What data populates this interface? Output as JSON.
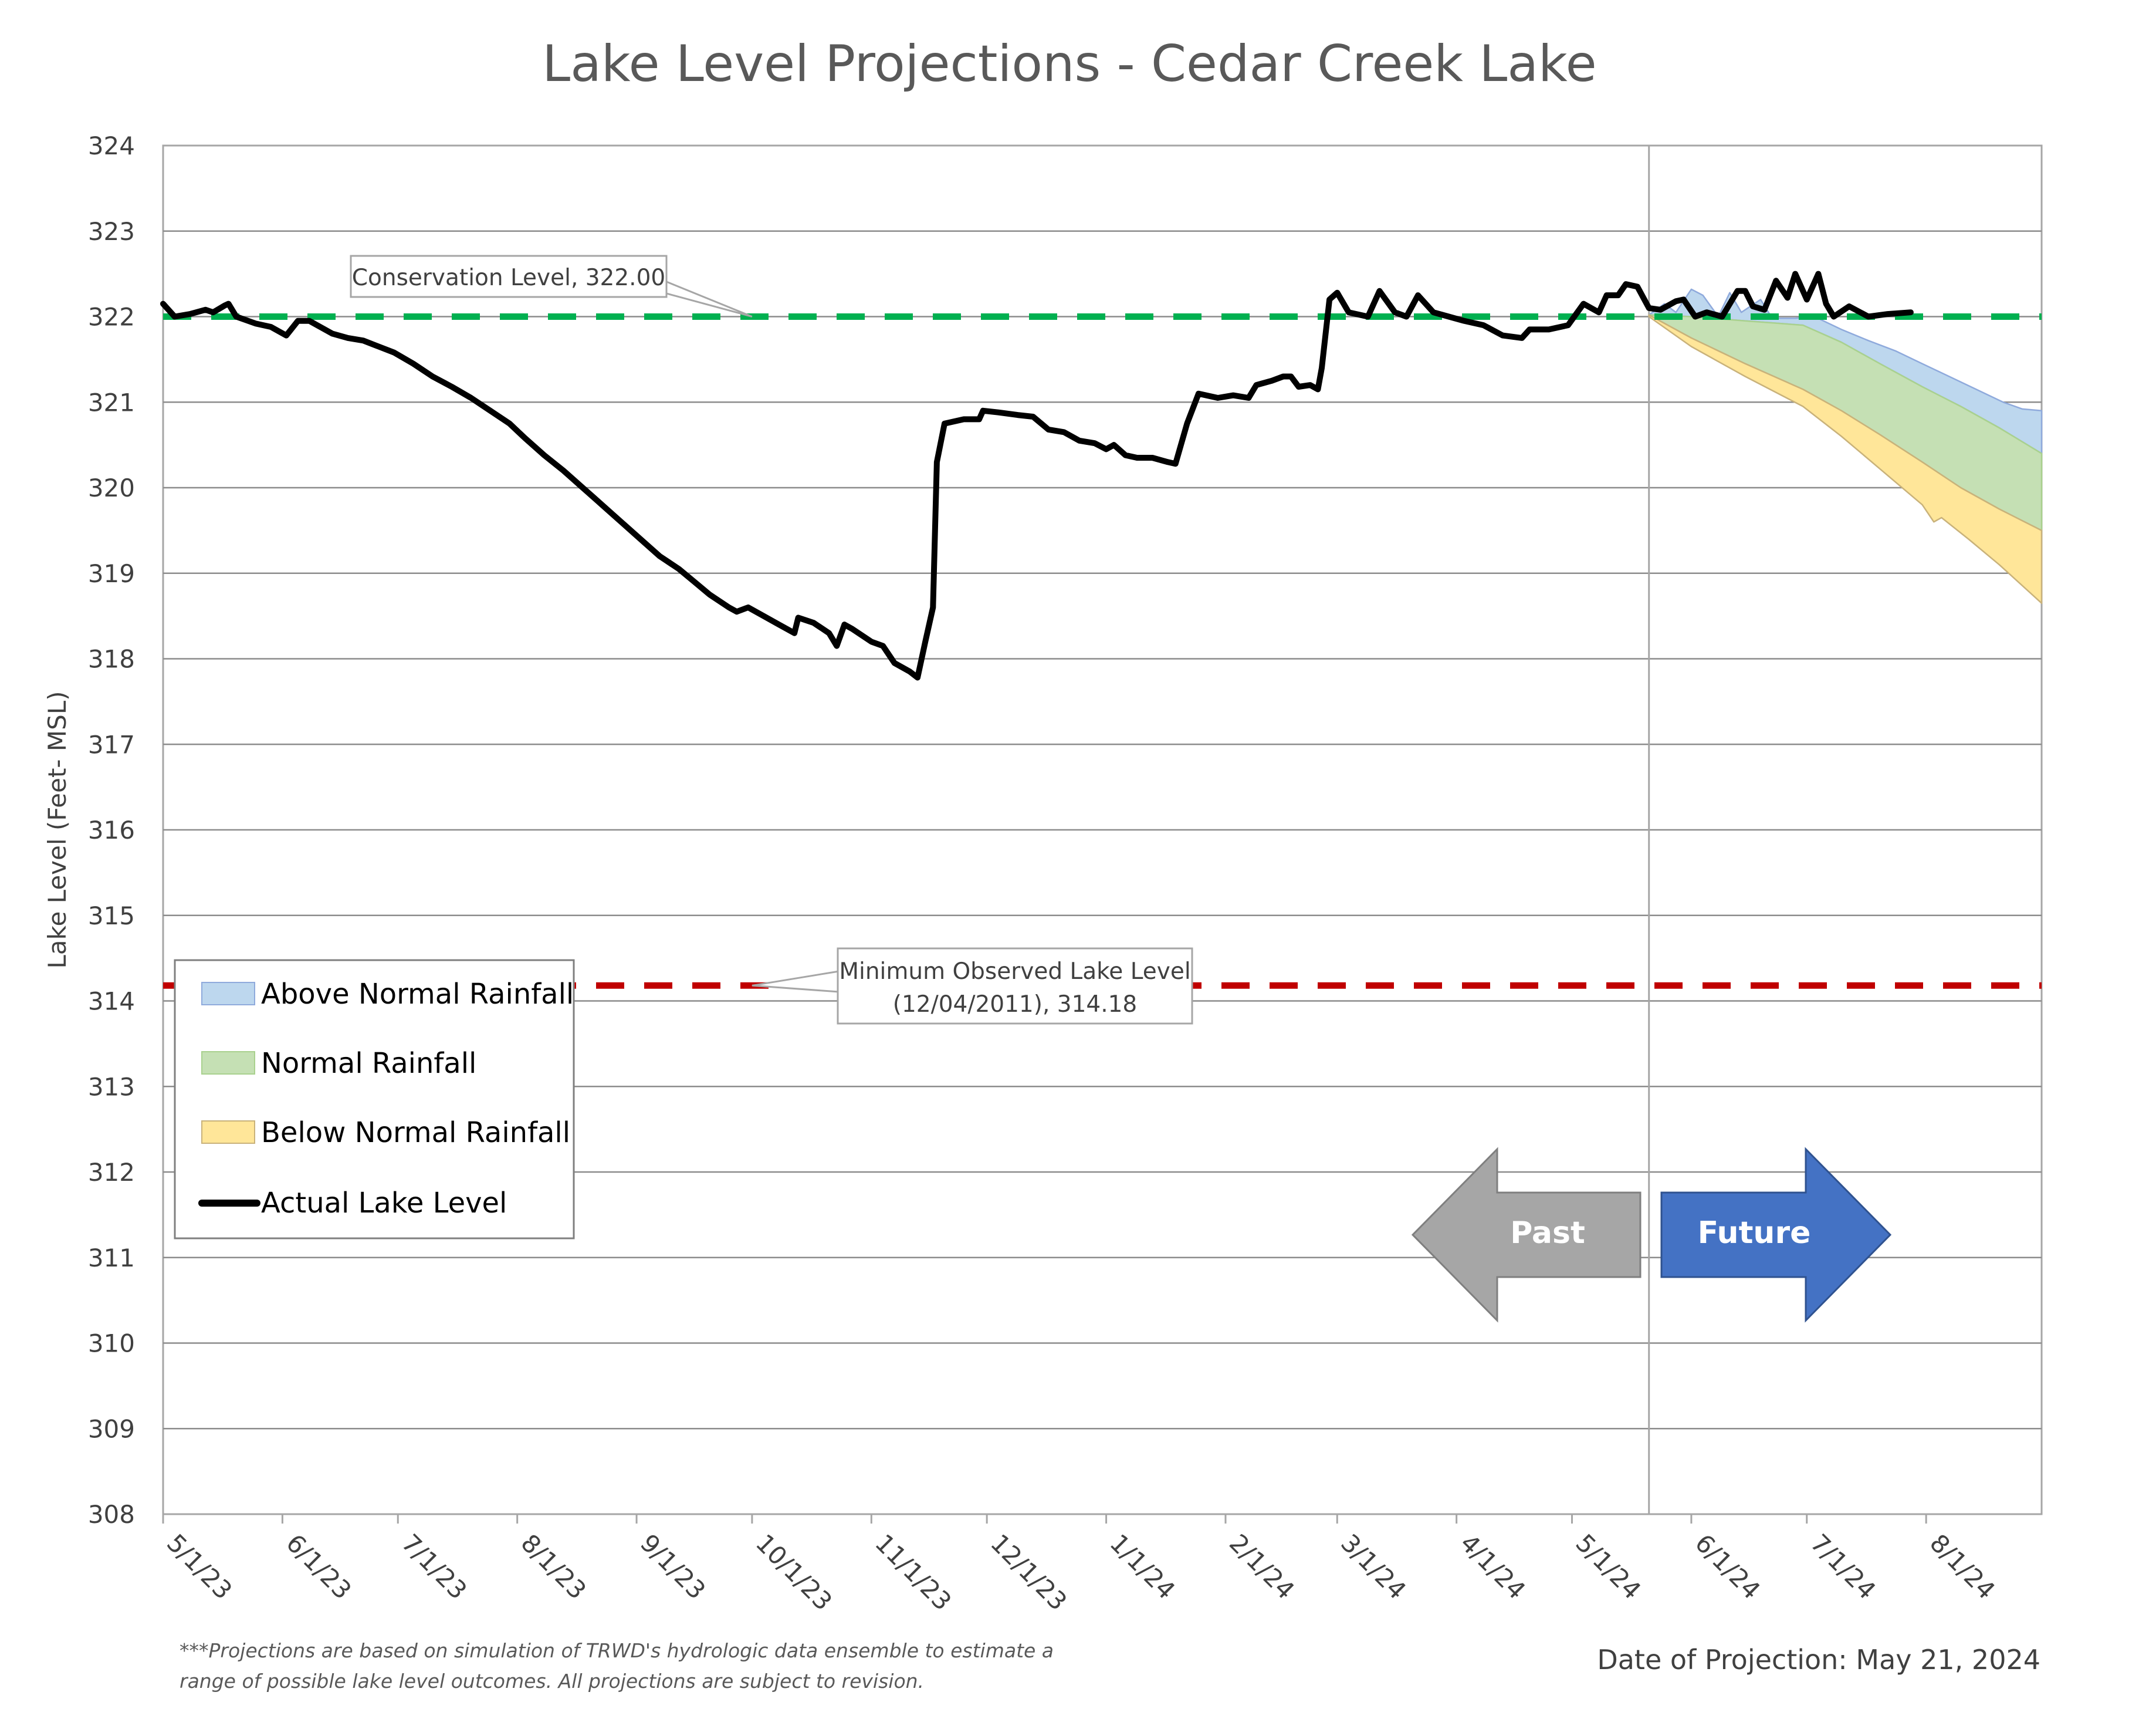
{
  "chart_data": {
    "type": "line",
    "title": "Lake Level Projections - Cedar Creek Lake",
    "ylabel": "Lake Level (Feet- MSL)",
    "xlabel": "",
    "ylim": [
      308,
      324
    ],
    "yticks": [
      "308",
      "309",
      "310",
      "311",
      "312",
      "313",
      "314",
      "315",
      "316",
      "317",
      "318",
      "319",
      "320",
      "321",
      "322",
      "323",
      "324"
    ],
    "x_range": [
      "2023-05-01",
      "2024-08-31"
    ],
    "xticks": [
      {
        "label": "5/1/23",
        "date": "2023-05-01"
      },
      {
        "label": "6/1/23",
        "date": "2023-06-01"
      },
      {
        "label": "7/1/23",
        "date": "2023-07-01"
      },
      {
        "label": "8/1/23",
        "date": "2023-08-01"
      },
      {
        "label": "9/1/23",
        "date": "2023-09-01"
      },
      {
        "label": "10/1/23",
        "date": "2023-10-01"
      },
      {
        "label": "11/1/23",
        "date": "2023-11-01"
      },
      {
        "label": "12/1/23",
        "date": "2023-12-01"
      },
      {
        "label": "1/1/24",
        "date": "2024-01-01"
      },
      {
        "label": "2/1/24",
        "date": "2024-02-01"
      },
      {
        "label": "3/1/24",
        "date": "2024-03-01"
      },
      {
        "label": "4/1/24",
        "date": "2024-04-01"
      },
      {
        "label": "5/1/24",
        "date": "2024-05-01"
      },
      {
        "label": "6/1/24",
        "date": "2024-06-01"
      },
      {
        "label": "7/1/24",
        "date": "2024-07-01"
      },
      {
        "label": "8/1/24",
        "date": "2024-08-01"
      }
    ],
    "grid": "horizontal",
    "legend_position": "bottom-left",
    "projection_date": "2024-05-21",
    "reference_lines": [
      {
        "name": "conservation",
        "value": 322.0,
        "color": "#00b050",
        "label": "Conservation Level, 322.00",
        "label_anchor_date": "2023-10-01"
      },
      {
        "name": "minimum",
        "value": 314.18,
        "color": "#c00000",
        "label_lines": [
          "Minimum Observed Lake Level",
          "(12/04/2011), 314.18"
        ],
        "label_anchor_date": "2023-10-01"
      }
    ],
    "series": [
      {
        "name": "Actual Lake Level",
        "type": "line",
        "color": "#000000",
        "points": [
          [
            "2023-05-01",
            322.15
          ],
          [
            "2023-05-04",
            322.0
          ],
          [
            "2023-05-08",
            322.03
          ],
          [
            "2023-05-12",
            322.08
          ],
          [
            "2023-05-14",
            322.05
          ],
          [
            "2023-05-17",
            322.13
          ],
          [
            "2023-05-18",
            322.15
          ],
          [
            "2023-05-20",
            322.0
          ],
          [
            "2023-05-25",
            321.92
          ],
          [
            "2023-05-29",
            321.88
          ],
          [
            "2023-06-02",
            321.78
          ],
          [
            "2023-06-05",
            321.95
          ],
          [
            "2023-06-08",
            321.95
          ],
          [
            "2023-06-14",
            321.8
          ],
          [
            "2023-06-18",
            321.75
          ],
          [
            "2023-06-22",
            321.72
          ],
          [
            "2023-06-26",
            321.65
          ],
          [
            "2023-06-30",
            321.58
          ],
          [
            "2023-07-05",
            321.45
          ],
          [
            "2023-07-10",
            321.3
          ],
          [
            "2023-07-15",
            321.18
          ],
          [
            "2023-07-20",
            321.05
          ],
          [
            "2023-07-25",
            320.9
          ],
          [
            "2023-07-30",
            320.75
          ],
          [
            "2023-08-03",
            320.58
          ],
          [
            "2023-08-08",
            320.38
          ],
          [
            "2023-08-13",
            320.2
          ],
          [
            "2023-08-18",
            320.0
          ],
          [
            "2023-08-23",
            319.8
          ],
          [
            "2023-08-28",
            319.6
          ],
          [
            "2023-09-02",
            319.4
          ],
          [
            "2023-09-07",
            319.2
          ],
          [
            "2023-09-12",
            319.05
          ],
          [
            "2023-09-16",
            318.9
          ],
          [
            "2023-09-20",
            318.75
          ],
          [
            "2023-09-25",
            318.6
          ],
          [
            "2023-09-27",
            318.55
          ],
          [
            "2023-09-30",
            318.6
          ],
          [
            "2023-10-04",
            318.5
          ],
          [
            "2023-10-08",
            318.4
          ],
          [
            "2023-10-12",
            318.3
          ],
          [
            "2023-10-13",
            318.48
          ],
          [
            "2023-10-17",
            318.42
          ],
          [
            "2023-10-21",
            318.3
          ],
          [
            "2023-10-23",
            318.15
          ],
          [
            "2023-10-25",
            318.4
          ],
          [
            "2023-10-27",
            318.35
          ],
          [
            "2023-11-01",
            318.2
          ],
          [
            "2023-11-04",
            318.15
          ],
          [
            "2023-11-07",
            317.95
          ],
          [
            "2023-11-11",
            317.85
          ],
          [
            "2023-11-13",
            317.78
          ],
          [
            "2023-11-15",
            318.2
          ],
          [
            "2023-11-17",
            318.6
          ],
          [
            "2023-11-18",
            320.3
          ],
          [
            "2023-11-20",
            320.75
          ],
          [
            "2023-11-25",
            320.8
          ],
          [
            "2023-11-29",
            320.8
          ],
          [
            "2023-11-30",
            320.9
          ],
          [
            "2023-12-04",
            320.88
          ],
          [
            "2023-12-09",
            320.85
          ],
          [
            "2023-12-13",
            320.83
          ],
          [
            "2023-12-17",
            320.68
          ],
          [
            "2023-12-21",
            320.65
          ],
          [
            "2023-12-25",
            320.55
          ],
          [
            "2023-12-29",
            320.52
          ],
          [
            "2024-01-01",
            320.45
          ],
          [
            "2024-01-03",
            320.5
          ],
          [
            "2024-01-06",
            320.38
          ],
          [
            "2024-01-09",
            320.35
          ],
          [
            "2024-01-13",
            320.35
          ],
          [
            "2024-01-17",
            320.3
          ],
          [
            "2024-01-19",
            320.28
          ],
          [
            "2024-01-22",
            320.75
          ],
          [
            "2024-01-25",
            321.1
          ],
          [
            "2024-01-30",
            321.05
          ],
          [
            "2024-02-03",
            321.08
          ],
          [
            "2024-02-07",
            321.05
          ],
          [
            "2024-02-09",
            321.2
          ],
          [
            "2024-02-13",
            321.25
          ],
          [
            "2024-02-16",
            321.3
          ],
          [
            "2024-02-18",
            321.3
          ],
          [
            "2024-02-20",
            321.18
          ],
          [
            "2024-02-23",
            321.2
          ],
          [
            "2024-02-25",
            321.15
          ],
          [
            "2024-02-26",
            321.4
          ],
          [
            "2024-02-28",
            322.2
          ],
          [
            "2024-03-01",
            322.28
          ],
          [
            "2024-03-04",
            322.05
          ],
          [
            "2024-03-09",
            322.0
          ],
          [
            "2024-03-12",
            322.3
          ],
          [
            "2024-03-16",
            322.05
          ],
          [
            "2024-03-19",
            322.0
          ],
          [
            "2024-03-22",
            322.25
          ],
          [
            "2024-03-26",
            322.05
          ],
          [
            "2024-03-30",
            322.0
          ],
          [
            "2024-04-03",
            321.95
          ],
          [
            "2024-04-08",
            321.9
          ],
          [
            "2024-04-13",
            321.78
          ],
          [
            "2024-04-18",
            321.75
          ],
          [
            "2024-04-20",
            321.85
          ],
          [
            "2024-04-25",
            321.85
          ],
          [
            "2024-04-30",
            321.9
          ],
          [
            "2024-05-04",
            322.15
          ],
          [
            "2024-05-08",
            322.05
          ],
          [
            "2024-05-10",
            322.25
          ],
          [
            "2024-05-13",
            322.25
          ],
          [
            "2024-05-15",
            322.38
          ],
          [
            "2024-05-18",
            322.35
          ],
          [
            "2024-05-21",
            322.1
          ],
          [
            "2024-05-24",
            322.08
          ],
          [
            "2024-05-28",
            322.18
          ],
          [
            "2024-05-30",
            322.2
          ],
          [
            "2024-06-02",
            322.0
          ],
          [
            "2024-06-05",
            322.05
          ],
          [
            "2024-06-09",
            322.0
          ],
          [
            "2024-06-13",
            322.3
          ],
          [
            "2024-06-15",
            322.3
          ],
          [
            "2024-06-17",
            322.12
          ],
          [
            "2024-06-20",
            322.08
          ],
          [
            "2024-06-23",
            322.42
          ],
          [
            "2024-06-26",
            322.22
          ],
          [
            "2024-06-28",
            322.5
          ],
          [
            "2024-07-01",
            322.2
          ],
          [
            "2024-07-04",
            322.5
          ],
          [
            "2024-07-06",
            322.15
          ],
          [
            "2024-07-08",
            322.0
          ],
          [
            "2024-07-12",
            322.12
          ],
          [
            "2024-07-17",
            322.0
          ],
          [
            "2024-07-22",
            322.03
          ],
          [
            "2024-07-28",
            322.05
          ]
        ]
      },
      {
        "name": "Above Normal Rainfall",
        "type": "band",
        "color": "#bdd7ee",
        "stroke": "#8faadc",
        "upper": [
          [
            "2024-05-21",
            322.02
          ],
          [
            "2024-05-25",
            322.15
          ],
          [
            "2024-05-28",
            322.05
          ],
          [
            "2024-06-01",
            322.32
          ],
          [
            "2024-06-04",
            322.25
          ],
          [
            "2024-06-08",
            322.0
          ],
          [
            "2024-06-11",
            322.28
          ],
          [
            "2024-06-14",
            322.05
          ],
          [
            "2024-06-19",
            322.2
          ],
          [
            "2024-06-22",
            321.98
          ],
          [
            "2024-06-28",
            321.98
          ],
          [
            "2024-07-03",
            322.0
          ],
          [
            "2024-07-10",
            321.85
          ],
          [
            "2024-07-17",
            321.72
          ],
          [
            "2024-07-24",
            321.6
          ],
          [
            "2024-07-31",
            321.45
          ],
          [
            "2024-08-07",
            321.3
          ],
          [
            "2024-08-14",
            321.15
          ],
          [
            "2024-08-21",
            321.0
          ],
          [
            "2024-08-26",
            320.92
          ],
          [
            "2024-08-31",
            320.9
          ]
        ],
        "lower": [
          [
            "2024-05-21",
            322.02
          ],
          [
            "2024-06-01",
            322.0
          ],
          [
            "2024-06-15",
            321.95
          ],
          [
            "2024-06-30",
            321.9
          ],
          [
            "2024-07-10",
            321.7
          ],
          [
            "2024-07-20",
            321.45
          ],
          [
            "2024-07-31",
            321.18
          ],
          [
            "2024-08-10",
            320.95
          ],
          [
            "2024-08-20",
            320.7
          ],
          [
            "2024-08-31",
            320.4
          ]
        ]
      },
      {
        "name": "Normal Rainfall",
        "type": "band",
        "color": "#c5e0b4",
        "stroke": "#a9d18e",
        "upper": [
          [
            "2024-05-21",
            322.02
          ],
          [
            "2024-06-01",
            322.0
          ],
          [
            "2024-06-15",
            321.95
          ],
          [
            "2024-06-30",
            321.9
          ],
          [
            "2024-07-10",
            321.7
          ],
          [
            "2024-07-20",
            321.45
          ],
          [
            "2024-07-31",
            321.18
          ],
          [
            "2024-08-10",
            320.95
          ],
          [
            "2024-08-20",
            320.7
          ],
          [
            "2024-08-31",
            320.4
          ]
        ],
        "lower": [
          [
            "2024-05-21",
            322.02
          ],
          [
            "2024-06-01",
            321.75
          ],
          [
            "2024-06-15",
            321.45
          ],
          [
            "2024-06-30",
            321.15
          ],
          [
            "2024-07-10",
            320.9
          ],
          [
            "2024-07-20",
            320.62
          ],
          [
            "2024-07-31",
            320.3
          ],
          [
            "2024-08-10",
            320.0
          ],
          [
            "2024-08-20",
            319.75
          ],
          [
            "2024-08-31",
            319.5
          ]
        ]
      },
      {
        "name": "Below Normal Rainfall",
        "type": "band",
        "color": "#ffe699",
        "stroke": "#c9b27a",
        "upper": [
          [
            "2024-05-21",
            322.02
          ],
          [
            "2024-06-01",
            321.75
          ],
          [
            "2024-06-15",
            321.45
          ],
          [
            "2024-06-30",
            321.15
          ],
          [
            "2024-07-10",
            320.9
          ],
          [
            "2024-07-20",
            320.62
          ],
          [
            "2024-07-31",
            320.3
          ],
          [
            "2024-08-10",
            320.0
          ],
          [
            "2024-08-20",
            319.75
          ],
          [
            "2024-08-31",
            319.5
          ]
        ],
        "lower": [
          [
            "2024-05-21",
            322.0
          ],
          [
            "2024-06-01",
            321.65
          ],
          [
            "2024-06-15",
            321.3
          ],
          [
            "2024-06-30",
            320.95
          ],
          [
            "2024-07-10",
            320.6
          ],
          [
            "2024-07-20",
            320.22
          ],
          [
            "2024-07-31",
            319.8
          ],
          [
            "2024-08-03",
            319.6
          ],
          [
            "2024-08-05",
            319.65
          ],
          [
            "2024-08-12",
            319.4
          ],
          [
            "2024-08-20",
            319.1
          ],
          [
            "2024-08-31",
            318.65
          ]
        ]
      }
    ]
  },
  "legend": {
    "items": [
      {
        "label": "Above Normal Rainfall",
        "swatch": "#bdd7ee",
        "kind": "box"
      },
      {
        "label": "Normal Rainfall",
        "swatch": "#c5e0b4",
        "kind": "box"
      },
      {
        "label": "Below Normal Rainfall",
        "swatch": "#ffe699",
        "kind": "box"
      },
      {
        "label": "Actual Lake Level",
        "swatch": "#000000",
        "kind": "line"
      }
    ]
  },
  "arrows": {
    "past": {
      "label": "Past",
      "color": "#a6a6a6"
    },
    "future": {
      "label": "Future",
      "color": "#4472c4"
    }
  },
  "footnote": {
    "line1": "***Projections are based on simulation of TRWD's hydrologic data ensemble to estimate a",
    "line2": "range of possible lake level outcomes.  All projections are subject to revision."
  },
  "projection_note": "Date of Projection: May 21, 2024"
}
